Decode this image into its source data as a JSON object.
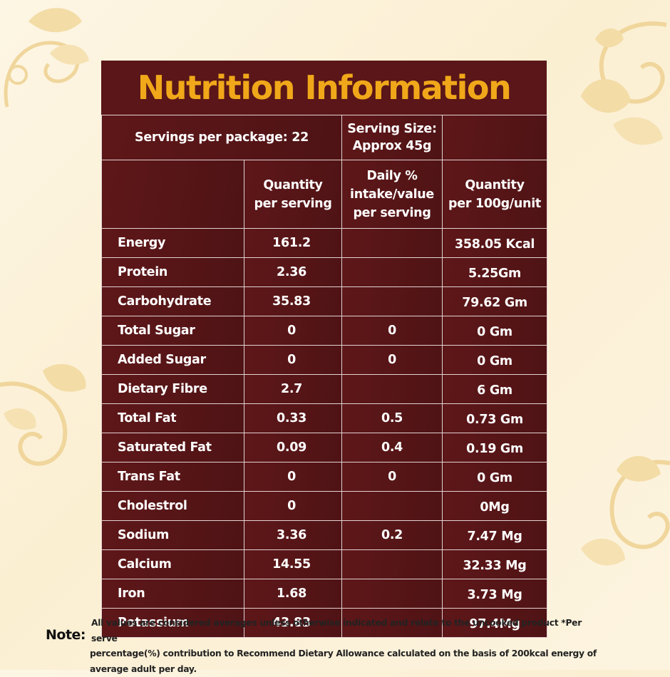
{
  "title": "Nutrition Information",
  "serving": {
    "per_package": "Servings per package: 22",
    "size_line1": "Serving Size:",
    "size_line2": "Approx 45g"
  },
  "headers": {
    "col1_line1": "Quantity",
    "col1_line2": "per serving",
    "col2_line1": "Daily %",
    "col2_line2": "intake/value",
    "col2_line3": "per serving",
    "col3_line1": "Quantity",
    "col3_line2": "per 100g/unit"
  },
  "rows": [
    {
      "name": "Energy",
      "per_serving": "161.2",
      "daily": "",
      "per_100g": "358.05 Kcal"
    },
    {
      "name": "Protein",
      "per_serving": "2.36",
      "daily": "",
      "per_100g": "5.25Gm"
    },
    {
      "name": "Carbohydrate",
      "per_serving": "35.83",
      "daily": "",
      "per_100g": "79.62 Gm"
    },
    {
      "name": "Total Sugar",
      "per_serving": "0",
      "daily": "0",
      "per_100g": "0 Gm"
    },
    {
      "name": "Added Sugar",
      "per_serving": "0",
      "daily": "0",
      "per_100g": "0 Gm"
    },
    {
      "name": "Dietary Fibre",
      "per_serving": "2.7",
      "daily": "",
      "per_100g": "6 Gm"
    },
    {
      "name": "Total Fat",
      "per_serving": "0.33",
      "daily": "0.5",
      "per_100g": "0.73 Gm"
    },
    {
      "name": "Saturated Fat",
      "per_serving": "0.09",
      "daily": "0.4",
      "per_100g": "0.19 Gm"
    },
    {
      "name": "Trans Fat",
      "per_serving": "0",
      "daily": "0",
      "per_100g": "0 Gm"
    },
    {
      "name": "Cholestrol",
      "per_serving": "0",
      "daily": "",
      "per_100g": "0Mg"
    },
    {
      "name": "Sodium",
      "per_serving": "3.36",
      "daily": "0.2",
      "per_100g": "7.47 Mg"
    },
    {
      "name": "Calcium",
      "per_serving": "14.55",
      "daily": "",
      "per_100g": "32.33 Mg"
    },
    {
      "name": "Iron",
      "per_serving": "1.68",
      "daily": "",
      "per_100g": "3.73 Mg"
    },
    {
      "name": "Potassium",
      "per_serving": "43.83",
      "daily": "",
      "per_100g": "97.4Mg"
    }
  ],
  "note": {
    "label": "Note:",
    "line1": "All values are considered averages unless otherwise indicated and relate to the uncooked product *Per serve",
    "line2": "percentage(%) contribution to Recommend Dietary Allowance calculated on the basis of 200kcal energy of",
    "line3": "average adult per day."
  },
  "colors": {
    "panel": "#5b1719",
    "title": "#f0a81a",
    "background": "#fdf6e4",
    "decoration": "#f2d9a0"
  },
  "decorations": [
    "floral-swirl-icon",
    "floral-swirl-icon",
    "floral-swirl-icon",
    "floral-swirl-icon"
  ]
}
